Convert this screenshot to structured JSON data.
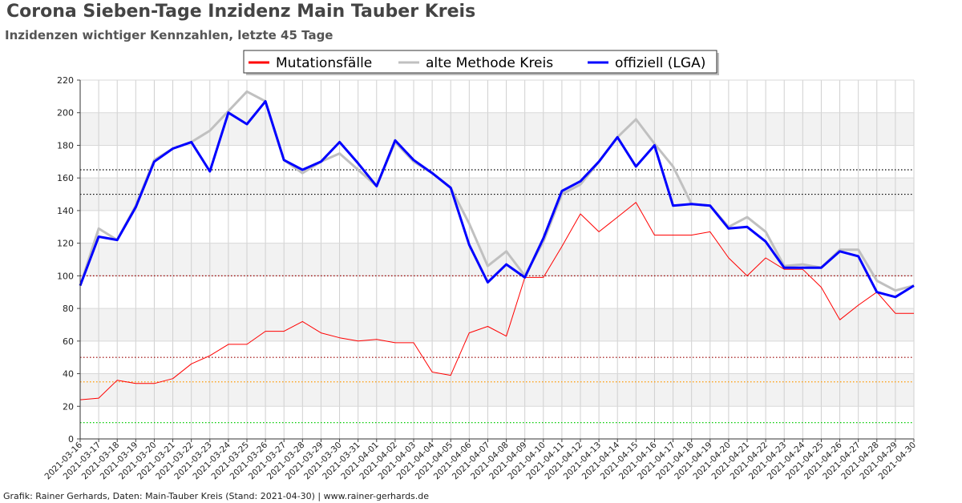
{
  "header": {
    "title": "Corona Sieben-Tage Inzidenz Main Tauber Kreis",
    "subtitle": "Inzidenzen wichtiger Kennzahlen, letzte 45 Tage"
  },
  "footer": {
    "credit": "Grafik: Rainer Gerhards, Daten: Main-Tauber Kreis (Stand: 2021-04-30) | www.rainer-gerhards.de"
  },
  "chart_data": {
    "type": "line",
    "title": "Corona Sieben-Tage Inzidenz Main Tauber Kreis",
    "subtitle": "Inzidenzen wichtiger Kennzahlen, letzte 45 Tage",
    "xlabel": "",
    "ylabel": "",
    "ylim": [
      0,
      220
    ],
    "yticks": [
      0,
      20,
      40,
      60,
      80,
      100,
      120,
      140,
      160,
      180,
      200,
      220
    ],
    "grid": true,
    "legend_position": "top-center",
    "x": [
      "2021-03-16",
      "2021-03-17",
      "2021-03-18",
      "2021-03-19",
      "2021-03-20",
      "2021-03-21",
      "2021-03-22",
      "2021-03-23",
      "2021-03-24",
      "2021-03-25",
      "2021-03-26",
      "2021-03-27",
      "2021-03-28",
      "2021-03-29",
      "2021-03-30",
      "2021-03-31",
      "2021-04-01",
      "2021-04-02",
      "2021-04-03",
      "2021-04-04",
      "2021-04-05",
      "2021-04-06",
      "2021-04-07",
      "2021-04-08",
      "2021-04-09",
      "2021-04-10",
      "2021-04-11",
      "2021-04-12",
      "2021-04-13",
      "2021-04-14",
      "2021-04-15",
      "2021-04-16",
      "2021-04-17",
      "2021-04-18",
      "2021-04-19",
      "2021-04-20",
      "2021-04-21",
      "2021-04-22",
      "2021-04-23",
      "2021-04-24",
      "2021-04-25",
      "2021-04-26",
      "2021-04-27",
      "2021-04-28",
      "2021-04-29",
      "2021-04-30"
    ],
    "series": [
      {
        "name": "Mutationsfälle",
        "color": "#ff0000",
        "width": 1,
        "values": [
          24,
          25,
          36,
          34,
          34,
          37,
          46,
          51,
          58,
          58,
          66,
          66,
          72,
          65,
          62,
          60,
          61,
          59,
          59,
          41,
          39,
          65,
          69,
          63,
          99,
          99,
          118,
          138,
          127,
          136,
          145,
          125,
          125,
          125,
          127,
          111,
          100,
          111,
          104,
          104,
          93,
          73,
          82,
          90,
          77,
          77
        ]
      },
      {
        "name": "alte Methode Kreis",
        "color": "#c0c0c0",
        "width": 3,
        "values": [
          94,
          129,
          122,
          143,
          171,
          178,
          182,
          189,
          201,
          213,
          207,
          171,
          163,
          170,
          175,
          165,
          155,
          182,
          170,
          163,
          154,
          132,
          106,
          115,
          100,
          121,
          150,
          156,
          170,
          185,
          196,
          181,
          167,
          144,
          143,
          130,
          136,
          127,
          106,
          107,
          105,
          116,
          116,
          97,
          91,
          94
        ]
      },
      {
        "name": "offiziell (LGA)",
        "color": "#0000ff",
        "width": 3,
        "values": [
          94,
          124,
          122,
          142,
          170,
          178,
          182,
          164,
          200,
          193,
          207,
          171,
          165,
          170,
          182,
          169,
          155,
          183,
          171,
          163,
          154,
          119,
          96,
          107,
          99,
          123,
          152,
          158,
          170,
          185,
          167,
          180,
          143,
          144,
          143,
          129,
          130,
          121,
          105,
          105,
          105,
          115,
          112,
          90,
          87,
          94
        ]
      }
    ],
    "reference_lines": [
      {
        "value": 165,
        "color": "#000000"
      },
      {
        "value": 150,
        "color": "#000000"
      },
      {
        "value": 100,
        "color": "#990000"
      },
      {
        "value": 50,
        "color": "#990000"
      },
      {
        "value": 35,
        "color": "#ff9900"
      },
      {
        "value": 10,
        "color": "#00cc00"
      }
    ]
  }
}
